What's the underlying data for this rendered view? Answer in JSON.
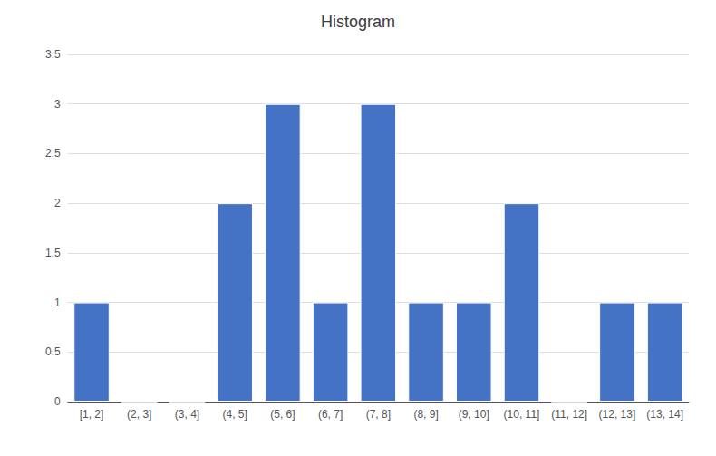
{
  "chart_data": {
    "type": "bar",
    "title": "Histogram",
    "categories": [
      "[1, 2]",
      "(2, 3]",
      "(3, 4]",
      "(4, 5]",
      "(5, 6]",
      "(6, 7]",
      "(7, 8]",
      "(8, 9]",
      "(9, 10]",
      "(10, 11]",
      "(11, 12]",
      "(12, 13]",
      "(13, 14]"
    ],
    "values": [
      1,
      0,
      0,
      2,
      3,
      1,
      3,
      1,
      1,
      2,
      0,
      1,
      1
    ],
    "color": "#4472C4",
    "ylim": [
      0,
      3.5
    ],
    "yticks": [
      0,
      0.5,
      1,
      1.5,
      2,
      2.5,
      3,
      3.5
    ],
    "grid": true
  }
}
